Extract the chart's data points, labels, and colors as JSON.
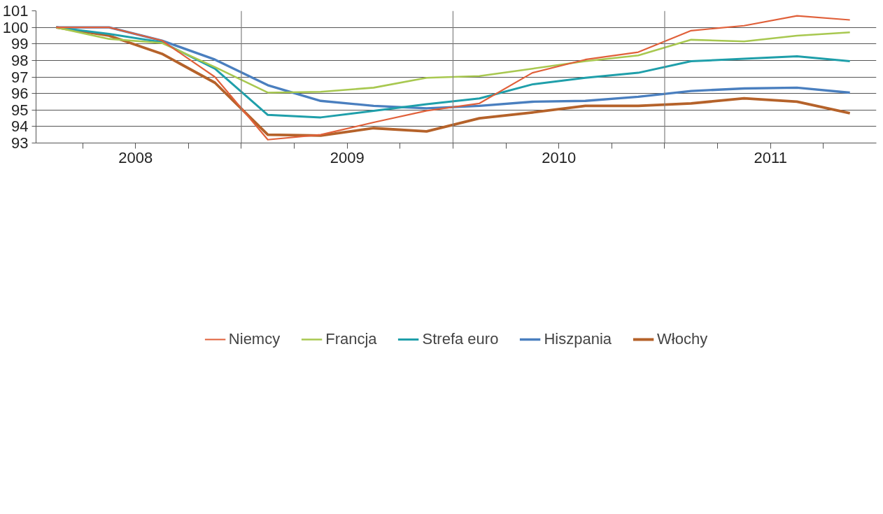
{
  "chart_data": {
    "type": "line",
    "x": [
      2008.125,
      2008.375,
      2008.625,
      2008.875,
      2009.125,
      2009.375,
      2009.625,
      2009.875,
      2010.125,
      2010.375,
      2010.625,
      2010.875,
      2011.125,
      2011.375,
      2011.625,
      2011.875
    ],
    "series": [
      {
        "name": "Niemcy",
        "color": "#e0603a",
        "values": [
          100,
          100,
          99.2,
          97.0,
          93.2,
          93.5,
          94.25,
          94.95,
          95.4,
          97.25,
          98.05,
          98.5,
          99.8,
          100.1,
          100.7,
          100.45
        ]
      },
      {
        "name": "Francja",
        "color": "#a8c850",
        "values": [
          100,
          99.3,
          99.05,
          97.6,
          96.05,
          96.1,
          96.35,
          96.95,
          97.05,
          97.5,
          97.95,
          98.3,
          99.25,
          99.15,
          99.5,
          99.7
        ]
      },
      {
        "name": "Strefa euro",
        "color": "#1f9faa",
        "values": [
          100,
          99.6,
          99.1,
          97.5,
          94.7,
          94.55,
          94.95,
          95.35,
          95.7,
          96.55,
          96.95,
          97.25,
          97.95,
          98.1,
          98.25,
          97.95
        ]
      },
      {
        "name": "Hiszpania",
        "color": "#4a7fbf",
        "values": [
          100,
          100,
          99.2,
          98.05,
          96.5,
          95.55,
          95.25,
          95.1,
          95.25,
          95.5,
          95.55,
          95.8,
          96.15,
          96.3,
          96.35,
          96.05
        ]
      },
      {
        "name": "Włochy",
        "color": "#b5622a",
        "values": [
          100,
          99.5,
          98.4,
          96.65,
          93.5,
          93.45,
          93.9,
          93.7,
          94.5,
          94.85,
          95.25,
          95.25,
          95.4,
          95.7,
          95.5,
          94.8
        ]
      }
    ],
    "xlim": [
      2008.03,
      2012.0
    ],
    "xticks": [
      {
        "value": 2008.25,
        "label": null
      },
      {
        "value": 2008.5,
        "label": "2008"
      },
      {
        "value": 2008.75,
        "label": null
      },
      {
        "value": 2009.0,
        "label": null
      },
      {
        "value": 2009.25,
        "label": null
      },
      {
        "value": 2009.5,
        "label": "2009"
      },
      {
        "value": 2009.75,
        "label": null
      },
      {
        "value": 2010.0,
        "label": null
      },
      {
        "value": 2010.25,
        "label": null
      },
      {
        "value": 2010.5,
        "label": "2010"
      },
      {
        "value": 2010.75,
        "label": null
      },
      {
        "value": 2011.0,
        "label": null
      },
      {
        "value": 2011.25,
        "label": null
      },
      {
        "value": 2011.5,
        "label": "2011"
      },
      {
        "value": 2011.75,
        "label": null
      }
    ],
    "ylim": [
      93,
      101
    ],
    "yticks": [
      93,
      94,
      95,
      96,
      97,
      98,
      99,
      100,
      101
    ],
    "ref_lines": [
      {
        "axis": "x",
        "value": 2009,
        "color": "#808080"
      },
      {
        "axis": "x",
        "value": 2010,
        "color": "#808080"
      },
      {
        "axis": "x",
        "value": 2011,
        "color": "#808080"
      }
    ],
    "grid": "y",
    "legend": "bottom",
    "marker": "none",
    "line_style": "solid"
  }
}
